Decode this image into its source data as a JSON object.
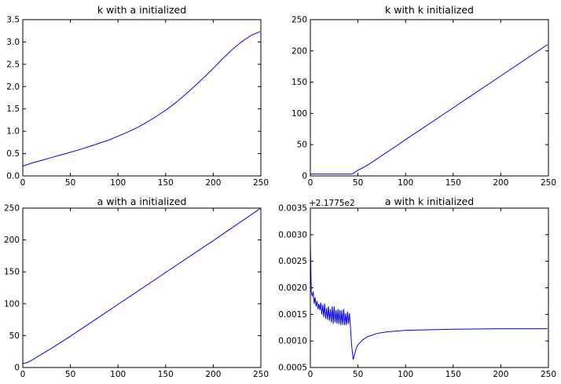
{
  "chart_data": [
    {
      "type": "line",
      "title": "k with a initialized",
      "xlabel": "",
      "ylabel": "",
      "xlim": [
        0,
        250
      ],
      "ylim": [
        0.0,
        3.5
      ],
      "xticks": [
        0,
        50,
        100,
        150,
        200,
        250
      ],
      "yticks": [
        0.0,
        0.5,
        1.0,
        1.5,
        2.0,
        2.5,
        3.0,
        3.5
      ],
      "ytick_labels": [
        "0.0",
        "0.5",
        "1.0",
        "1.5",
        "2.0",
        "2.5",
        "3.0",
        "3.5"
      ],
      "grid": false,
      "color": "#0000ff",
      "series": [
        {
          "x": [
            0,
            10,
            20,
            30,
            40,
            50,
            60,
            70,
            80,
            90,
            100,
            110,
            120,
            130,
            140,
            150,
            160,
            170,
            180,
            190,
            200,
            210,
            220,
            230,
            240,
            249
          ],
          "y": [
            0.22,
            0.29,
            0.35,
            0.41,
            0.47,
            0.53,
            0.59,
            0.66,
            0.73,
            0.8,
            0.89,
            0.98,
            1.08,
            1.2,
            1.33,
            1.47,
            1.63,
            1.81,
            2.0,
            2.2,
            2.41,
            2.63,
            2.83,
            3.01,
            3.15,
            3.23
          ]
        }
      ]
    },
    {
      "type": "line",
      "title": "k with k initialized",
      "xlabel": "",
      "ylabel": "",
      "xlim": [
        0,
        250
      ],
      "ylim": [
        0,
        250
      ],
      "xticks": [
        0,
        50,
        100,
        150,
        200,
        250
      ],
      "yticks": [
        0,
        50,
        100,
        150,
        200,
        250
      ],
      "ytick_labels": [
        "0",
        "50",
        "100",
        "150",
        "200",
        "250"
      ],
      "grid": false,
      "color": "#0000ff",
      "series": [
        {
          "x": [
            0,
            20,
            44,
            46,
            50,
            55,
            60,
            100,
            150,
            200,
            249
          ],
          "y": [
            3,
            3,
            3,
            5,
            9,
            13,
            17,
            58,
            109,
            160,
            210
          ]
        }
      ]
    },
    {
      "type": "line",
      "title": "a with a initialized",
      "xlabel": "",
      "ylabel": "",
      "xlim": [
        0,
        250
      ],
      "ylim": [
        0,
        250
      ],
      "xticks": [
        0,
        50,
        100,
        150,
        200,
        250
      ],
      "yticks": [
        0,
        50,
        100,
        150,
        200,
        250
      ],
      "ytick_labels": [
        "0",
        "50",
        "100",
        "150",
        "200",
        "250"
      ],
      "grid": false,
      "color": "#0000ff",
      "series": [
        {
          "x": [
            0,
            5,
            10,
            20,
            30,
            50,
            100,
            150,
            200,
            249
          ],
          "y": [
            6,
            8,
            12,
            21,
            30,
            49,
            99,
            149,
            199,
            249
          ]
        }
      ]
    },
    {
      "type": "line",
      "title": "a with k initialized",
      "offset_text": "+2.1775e2",
      "xlabel": "",
      "ylabel": "",
      "xlim": [
        0,
        250
      ],
      "ylim": [
        0.0005,
        0.0035
      ],
      "xticks": [
        0,
        50,
        100,
        150,
        200,
        250
      ],
      "yticks": [
        0.0005,
        0.001,
        0.0015,
        0.002,
        0.0025,
        0.003,
        0.0035
      ],
      "ytick_labels": [
        "0.0005",
        "0.0010",
        "0.0015",
        "0.0020",
        "0.0025",
        "0.0030",
        "0.0035"
      ],
      "grid": false,
      "color": "#0000ff",
      "series": [
        {
          "x": [
            0,
            1,
            2,
            3,
            4,
            5,
            6,
            7,
            8,
            9,
            10,
            11,
            12,
            13,
            14,
            15,
            16,
            17,
            18,
            19,
            20,
            21,
            22,
            23,
            24,
            25,
            26,
            27,
            28,
            29,
            30,
            31,
            32,
            33,
            34,
            35,
            36,
            37,
            38,
            39,
            40,
            41,
            42,
            43,
            44,
            45,
            46,
            48,
            50,
            55,
            60,
            70,
            80,
            100,
            150,
            200,
            249
          ],
          "y": [
            0.00285,
            0.0019,
            0.00185,
            0.00193,
            0.0017,
            0.00182,
            0.00165,
            0.00175,
            0.0016,
            0.0017,
            0.00158,
            0.00172,
            0.0015,
            0.00168,
            0.00145,
            0.0017,
            0.00142,
            0.00162,
            0.0014,
            0.00165,
            0.00138,
            0.0016,
            0.00135,
            0.00165,
            0.00132,
            0.00165,
            0.00135,
            0.00158,
            0.00132,
            0.0016,
            0.00132,
            0.00158,
            0.0013,
            0.00158,
            0.0013,
            0.0016,
            0.0013,
            0.00152,
            0.0013,
            0.00155,
            0.00132,
            0.00152,
            0.0013,
            0.001,
            0.0008,
            0.00065,
            0.00072,
            0.00085,
            0.00093,
            0.00102,
            0.00108,
            0.00114,
            0.00117,
            0.0012,
            0.00122,
            0.00123,
            0.00123
          ]
        }
      ]
    }
  ]
}
